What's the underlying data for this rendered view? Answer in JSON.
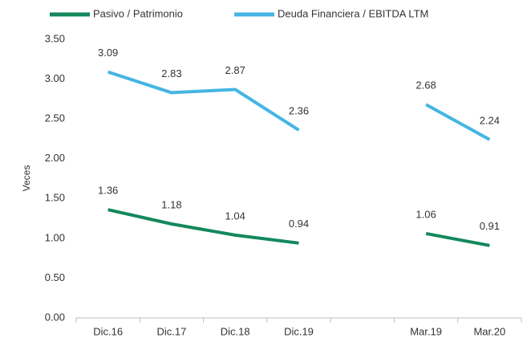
{
  "chart_data": {
    "type": "line",
    "y_label": "Veces",
    "categories": [
      "Dic.16",
      "Dic.17",
      "Dic.18",
      "Dic.19",
      null,
      "Mar.19",
      "Mar.20"
    ],
    "series": [
      {
        "name": "Pasivo / Patrimonio",
        "color": "#13885c",
        "values": [
          1.36,
          1.18,
          1.04,
          0.94,
          null,
          1.06,
          0.91
        ]
      },
      {
        "name": "Deuda Financiera / EBITDA LTM",
        "color": "#45b5e3",
        "values": [
          3.09,
          2.83,
          2.87,
          2.36,
          null,
          2.68,
          2.24
        ]
      }
    ],
    "ylim": [
      0,
      3.5
    ],
    "yticks": [
      {
        "value": 0,
        "label": "0.00"
      },
      {
        "value": 0.5,
        "label": "0.50"
      },
      {
        "value": 1,
        "label": "1.00"
      },
      {
        "value": 1.5,
        "label": "1.50"
      },
      {
        "value": 2,
        "label": "2.00"
      },
      {
        "value": 2.5,
        "label": "2.50"
      },
      {
        "value": 3,
        "label": "3.00"
      },
      {
        "value": 3.5,
        "label": "3.50"
      }
    ],
    "grid": false,
    "legend": "top"
  }
}
